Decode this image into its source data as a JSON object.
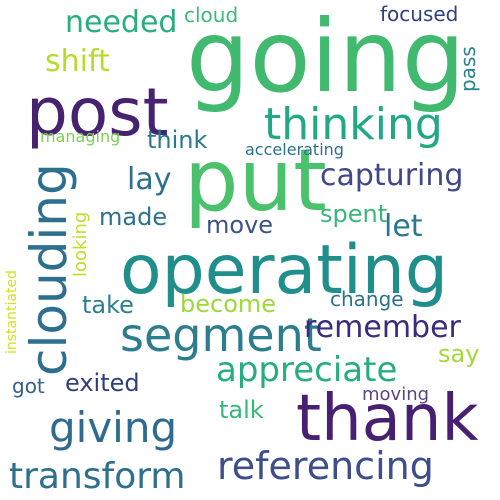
{
  "word_cloud": {
    "words": [
      {
        "text": "going",
        "color": "#41b96e"
      },
      {
        "text": "post",
        "color": "#46226f"
      },
      {
        "text": "put",
        "color": "#4cc16b"
      },
      {
        "text": "operating",
        "color": "#208f8c"
      },
      {
        "text": "thank",
        "color": "#482071"
      },
      {
        "text": "clouding",
        "color": "#2d6f8e"
      },
      {
        "text": "segment",
        "color": "#2c7e8e"
      },
      {
        "text": "thinking",
        "color": "#22a884"
      },
      {
        "text": "giving",
        "color": "#2e6b8e"
      },
      {
        "text": "referencing",
        "color": "#3d4e8a"
      },
      {
        "text": "transform",
        "color": "#2d708e"
      },
      {
        "text": "appreciate",
        "color": "#26ad81"
      },
      {
        "text": "remember",
        "color": "#3b2b7d"
      },
      {
        "text": "capturing",
        "color": "#3f4889"
      },
      {
        "text": "needed",
        "color": "#28ae80"
      },
      {
        "text": "shift",
        "color": "#b5de2b"
      },
      {
        "text": "lay",
        "color": "#2d718e"
      },
      {
        "text": "let",
        "color": "#2a788e"
      },
      {
        "text": "think",
        "color": "#2a7a8e"
      },
      {
        "text": "made",
        "color": "#2c738e"
      },
      {
        "text": "move",
        "color": "#3b528b"
      },
      {
        "text": "spent",
        "color": "#3ab67a"
      },
      {
        "text": "take",
        "color": "#2d7f8e"
      },
      {
        "text": "become",
        "color": "#9dd93b"
      },
      {
        "text": "change",
        "color": "#2c728e"
      },
      {
        "text": "say",
        "color": "#a2da37"
      },
      {
        "text": "exited",
        "color": "#2f3e7f"
      },
      {
        "text": "talk",
        "color": "#33b979"
      },
      {
        "text": "moving",
        "color": "#5c4488"
      },
      {
        "text": "got",
        "color": "#35608d"
      },
      {
        "text": "cloud",
        "color": "#3db97a"
      },
      {
        "text": "focused",
        "color": "#30407f"
      },
      {
        "text": "pass",
        "color": "#25858e"
      },
      {
        "text": "managing",
        "color": "#7ad151"
      },
      {
        "text": "accelerating",
        "color": "#2d718e"
      },
      {
        "text": "looking",
        "color": "#c0df25"
      },
      {
        "text": "instantiated",
        "color": "#d2e21b"
      }
    ]
  }
}
